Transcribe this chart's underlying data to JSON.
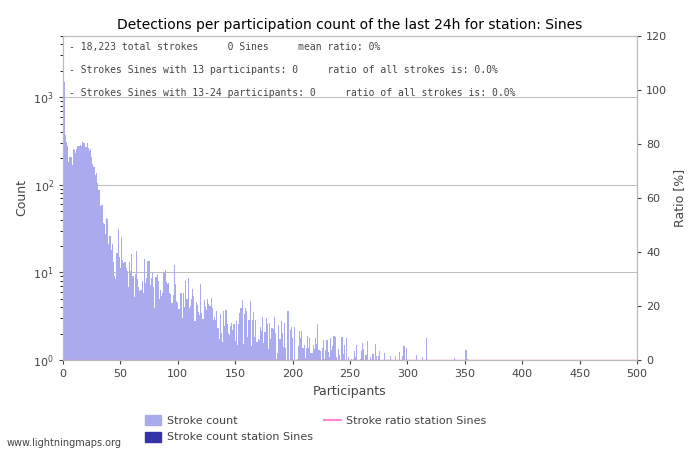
{
  "title": "Detections per participation count of the last 24h for station: Sines",
  "xlabel": "Participants",
  "ylabel_left": "Count",
  "ylabel_right": "Ratio [%]",
  "annotation_lines": [
    "- 18,223 total strokes     0 Sines     mean ratio: 0%",
    "- Strokes Sines with 13 participants: 0     ratio of all strokes is: 0.0%",
    "- Strokes Sines with 13-24 participants: 0     ratio of all strokes is: 0.0%"
  ],
  "bar_color_light": "#aaaaee",
  "bar_color_dark": "#3333aa",
  "line_color": "#ff88cc",
  "grid_color": "#bbbbbb",
  "background_color": "#ffffff",
  "text_color": "#444444",
  "watermark": "www.lightningmaps.org",
  "legend_entries": [
    "Stroke count",
    "Stroke count station Sines",
    "Stroke ratio station Sines"
  ],
  "xlim": [
    0,
    500
  ],
  "ylim_right": [
    0,
    120
  ],
  "xticks": [
    0,
    50,
    100,
    150,
    200,
    250,
    300,
    350,
    400,
    450,
    500
  ],
  "yticks_right": [
    0,
    20,
    40,
    60,
    80,
    100,
    120
  ],
  "total_strokes": 18223,
  "max_participants": 500
}
